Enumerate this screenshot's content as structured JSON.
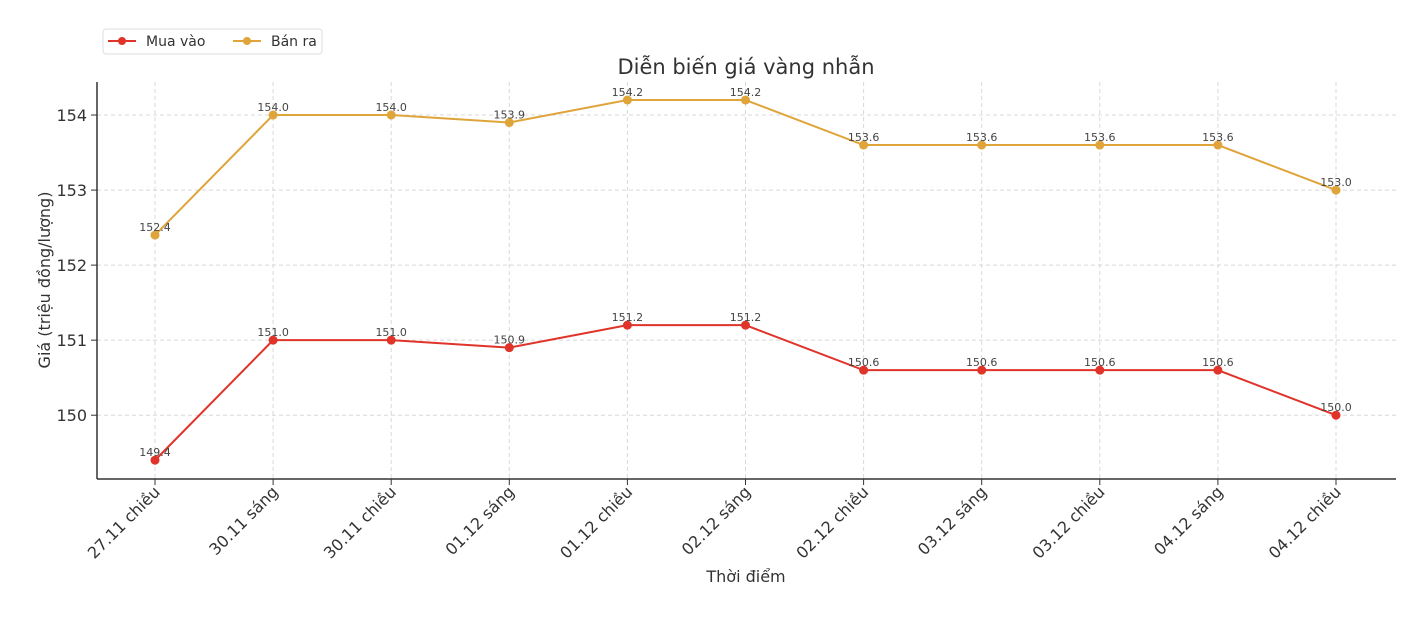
{
  "chart_data": {
    "type": "line",
    "title": "Diễn biến giá vàng nhẫn",
    "xlabel": "Thời điểm",
    "ylabel": "Giá (triệu đồng/lượng)",
    "categories": [
      "27.11 chiều",
      "30.11 sáng",
      "30.11 chiều",
      "01.12 sáng",
      "01.12 chiều",
      "02.12 sáng",
      "02.12 chiều",
      "03.12 sáng",
      "03.12 chiều",
      "04.12 sáng",
      "04.12 chiều"
    ],
    "series": [
      {
        "name": "Mua vào",
        "color": "#e0342a",
        "values": [
          149.4,
          151.0,
          151.0,
          150.9,
          151.2,
          151.2,
          150.6,
          150.6,
          150.6,
          150.6,
          150.0
        ]
      },
      {
        "name": "Bán ra",
        "color": "#dfa43a",
        "values": [
          152.4,
          154.0,
          154.0,
          153.9,
          154.2,
          154.2,
          153.6,
          153.6,
          153.6,
          153.6,
          153.0
        ]
      }
    ],
    "yticks": [
      150,
      151,
      152,
      153,
      154
    ],
    "ylim": [
      149.15,
      154.44
    ],
    "grid": true,
    "legend": "top-left",
    "data_labels": true
  }
}
